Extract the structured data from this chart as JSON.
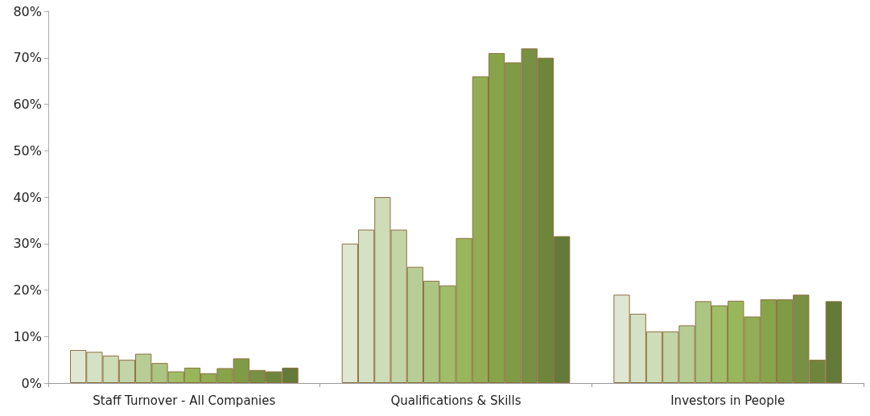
{
  "chart_data": {
    "type": "bar",
    "categories": [
      "Staff Turnover - All Companies",
      "Qualifications & Skills",
      "Investors in People"
    ],
    "series": [
      {
        "color": "#dfe7d2",
        "values": [
          7.1,
          30,
          19
        ]
      },
      {
        "color": "#d4e1c4",
        "values": [
          6.7,
          33,
          14.9
        ]
      },
      {
        "color": "#cedcb8",
        "values": [
          5.9,
          40,
          11.1
        ]
      },
      {
        "color": "#c3d4a7",
        "values": [
          5,
          33,
          11.1
        ]
      },
      {
        "color": "#b8cd96",
        "values": [
          6.3,
          25,
          12.4
        ]
      },
      {
        "color": "#acc582",
        "values": [
          4.3,
          22,
          17.6
        ]
      },
      {
        "color": "#a0be67",
        "values": [
          2.5,
          21,
          16.7
        ]
      },
      {
        "color": "#98b75a",
        "values": [
          3.3,
          31.2,
          17.7
        ]
      },
      {
        "color": "#92ad53",
        "values": [
          2.1,
          66,
          14.3
        ]
      },
      {
        "color": "#88a44b",
        "values": [
          3.2,
          71,
          18
        ]
      },
      {
        "color": "#809b46",
        "values": [
          5.3,
          69,
          18
        ]
      },
      {
        "color": "#779043",
        "values": [
          2.8,
          72,
          19
        ]
      },
      {
        "color": "#6e863c",
        "values": [
          2.5,
          70,
          5
        ]
      },
      {
        "color": "#637a38",
        "values": [
          3.3,
          31.6,
          17.6
        ]
      }
    ],
    "ylim": [
      0,
      80
    ],
    "yticks": [
      {
        "value": 0,
        "label": "0%"
      },
      {
        "value": 10,
        "label": "10%"
      },
      {
        "value": 20,
        "label": "20%"
      },
      {
        "value": 30,
        "label": "30%"
      },
      {
        "value": 40,
        "label": "40%"
      },
      {
        "value": 50,
        "label": "50%"
      },
      {
        "value": 60,
        "label": "60%"
      },
      {
        "value": 70,
        "label": "70%"
      },
      {
        "value": 80,
        "label": "80%"
      }
    ]
  }
}
